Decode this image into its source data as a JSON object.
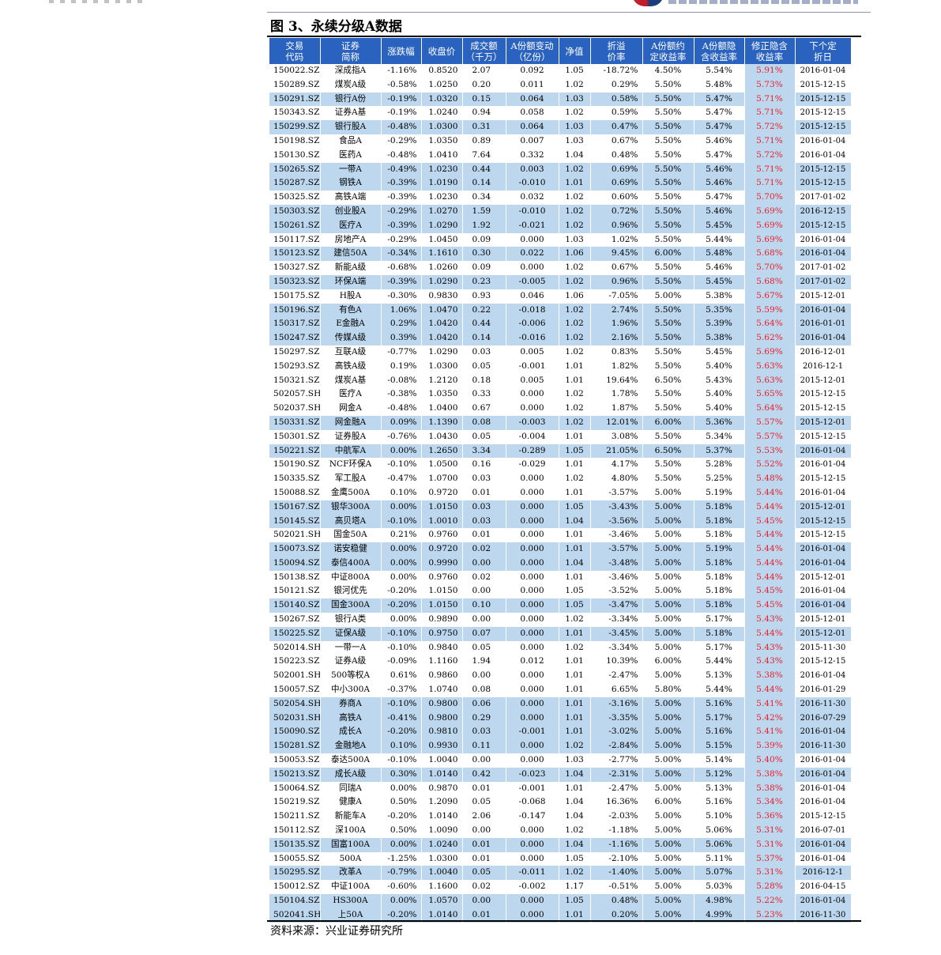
{
  "figure": {
    "title": "图 3、永续分级A数据",
    "source": "资料来源：兴业证券研究所"
  },
  "colors": {
    "header_bg": "#2a62bf",
    "row_highlight": "#bdd7ee",
    "hidden_yield_text": "#e8202a"
  },
  "table": {
    "headers": [
      [
        "交易",
        "代码"
      ],
      [
        "证券",
        "简称"
      ],
      [
        "涨跌幅",
        ""
      ],
      [
        "收盘价",
        ""
      ],
      [
        "成交额",
        "（千万）"
      ],
      [
        "A份额变动",
        "（亿份）"
      ],
      [
        "净值",
        ""
      ],
      [
        "折溢",
        "价率"
      ],
      [
        "A份额约",
        "定收益率"
      ],
      [
        "A份额隐",
        "含收益率"
      ],
      [
        "修正隐含",
        "收益率"
      ],
      [
        "下个定",
        "折日"
      ]
    ],
    "rows": [
      [
        "150022.SZ",
        "深成指A",
        "-1.16%",
        "0.8520",
        "2.07",
        "0.092",
        "1.05",
        "-18.72%",
        "4.50%",
        "5.54%",
        "5.91%",
        "2016-01-04"
      ],
      [
        "150289.SZ",
        "煤炭A级",
        "-0.58%",
        "1.0250",
        "0.20",
        "0.011",
        "1.02",
        "0.29%",
        "5.50%",
        "5.48%",
        "5.73%",
        "2015-12-15"
      ],
      [
        "150291.SZ",
        "银行A份",
        "-0.19%",
        "1.0320",
        "0.15",
        "0.064",
        "1.03",
        "0.58%",
        "5.50%",
        "5.47%",
        "5.71%",
        "2015-12-15"
      ],
      [
        "150343.SZ",
        "证券A基",
        "-0.19%",
        "1.0240",
        "0.94",
        "0.058",
        "1.02",
        "0.59%",
        "5.50%",
        "5.47%",
        "5.71%",
        "2015-12-15"
      ],
      [
        "150299.SZ",
        "银行股A",
        "-0.48%",
        "1.0300",
        "0.31",
        "0.064",
        "1.03",
        "0.47%",
        "5.50%",
        "5.47%",
        "5.72%",
        "2015-12-15"
      ],
      [
        "150198.SZ",
        "食品A",
        "-0.29%",
        "1.0350",
        "0.89",
        "0.007",
        "1.03",
        "0.67%",
        "5.50%",
        "5.46%",
        "5.71%",
        "2016-01-04"
      ],
      [
        "150130.SZ",
        "医药A",
        "-0.48%",
        "1.0410",
        "7.64",
        "0.332",
        "1.04",
        "0.48%",
        "5.50%",
        "5.47%",
        "5.72%",
        "2016-01-04"
      ],
      [
        "150265.SZ",
        "一带A",
        "-0.49%",
        "1.0230",
        "0.44",
        "0.003",
        "1.02",
        "0.69%",
        "5.50%",
        "5.46%",
        "5.71%",
        "2015-12-15"
      ],
      [
        "150287.SZ",
        "钢铁A",
        "-0.39%",
        "1.0190",
        "0.14",
        "-0.010",
        "1.01",
        "0.69%",
        "5.50%",
        "5.46%",
        "5.71%",
        "2015-12-15"
      ],
      [
        "150325.SZ",
        "高铁A端",
        "-0.39%",
        "1.0230",
        "0.34",
        "0.032",
        "1.02",
        "0.60%",
        "5.50%",
        "5.47%",
        "5.70%",
        "2017-01-02"
      ],
      [
        "150303.SZ",
        "创业股A",
        "-0.29%",
        "1.0270",
        "1.59",
        "-0.010",
        "1.02",
        "0.72%",
        "5.50%",
        "5.46%",
        "5.69%",
        "2016-12-15"
      ],
      [
        "150261.SZ",
        "医疗A",
        "-0.39%",
        "1.0290",
        "1.92",
        "-0.021",
        "1.02",
        "0.96%",
        "5.50%",
        "5.45%",
        "5.69%",
        "2015-12-15"
      ],
      [
        "150117.SZ",
        "房地产A",
        "-0.29%",
        "1.0450",
        "0.09",
        "0.000",
        "1.03",
        "1.02%",
        "5.50%",
        "5.44%",
        "5.69%",
        "2016-01-04"
      ],
      [
        "150123.SZ",
        "建信50A",
        "-0.34%",
        "1.1610",
        "0.30",
        "0.022",
        "1.06",
        "9.45%",
        "6.00%",
        "5.48%",
        "5.68%",
        "2016-01-04"
      ],
      [
        "150327.SZ",
        "新能A级",
        "-0.68%",
        "1.0260",
        "0.09",
        "0.000",
        "1.02",
        "0.67%",
        "5.50%",
        "5.46%",
        "5.70%",
        "2017-01-02"
      ],
      [
        "150323.SZ",
        "环保A端",
        "-0.39%",
        "1.0290",
        "0.23",
        "-0.005",
        "1.02",
        "0.96%",
        "5.50%",
        "5.45%",
        "5.68%",
        "2017-01-02"
      ],
      [
        "150175.SZ",
        "H股A",
        "-0.30%",
        "0.9830",
        "0.93",
        "0.046",
        "1.06",
        "-7.05%",
        "5.00%",
        "5.38%",
        "5.67%",
        "2015-12-01"
      ],
      [
        "150196.SZ",
        "有色A",
        "1.06%",
        "1.0470",
        "0.22",
        "-0.018",
        "1.02",
        "2.74%",
        "5.50%",
        "5.35%",
        "5.59%",
        "2016-01-04"
      ],
      [
        "150317.SZ",
        "E金融A",
        "0.29%",
        "1.0420",
        "0.44",
        "-0.006",
        "1.02",
        "1.96%",
        "5.50%",
        "5.39%",
        "5.64%",
        "2016-01-01"
      ],
      [
        "150247.SZ",
        "传媒A级",
        "0.39%",
        "1.0420",
        "0.14",
        "-0.016",
        "1.02",
        "2.16%",
        "5.50%",
        "5.38%",
        "5.62%",
        "2016-01-04"
      ],
      [
        "150297.SZ",
        "互联A级",
        "-0.77%",
        "1.0290",
        "0.03",
        "0.005",
        "1.02",
        "0.83%",
        "5.50%",
        "5.45%",
        "5.69%",
        "2016-12-01"
      ],
      [
        "150293.SZ",
        "高铁A级",
        "0.19%",
        "1.0300",
        "0.05",
        "-0.001",
        "1.01",
        "1.82%",
        "5.50%",
        "5.40%",
        "5.63%",
        "2016-12-1"
      ],
      [
        "150321.SZ",
        "煤炭A基",
        "-0.08%",
        "1.2120",
        "0.18",
        "0.005",
        "1.01",
        "19.64%",
        "6.50%",
        "5.43%",
        "5.63%",
        "2015-12-01"
      ],
      [
        "502057.SH",
        "医疗A",
        "-0.38%",
        "1.0350",
        "0.33",
        "0.000",
        "1.02",
        "1.78%",
        "5.50%",
        "5.40%",
        "5.65%",
        "2015-12-15"
      ],
      [
        "502037.SH",
        "网金A",
        "-0.48%",
        "1.0400",
        "0.67",
        "0.000",
        "1.02",
        "1.87%",
        "5.50%",
        "5.40%",
        "5.64%",
        "2015-12-15"
      ],
      [
        "150331.SZ",
        "网金融A",
        "0.09%",
        "1.1390",
        "0.08",
        "-0.003",
        "1.02",
        "12.01%",
        "6.00%",
        "5.36%",
        "5.57%",
        "2015-12-01"
      ],
      [
        "150301.SZ",
        "证券股A",
        "-0.76%",
        "1.0430",
        "0.05",
        "-0.004",
        "1.01",
        "3.08%",
        "5.50%",
        "5.34%",
        "5.57%",
        "2015-12-15"
      ],
      [
        "150221.SZ",
        "中航军A",
        "0.00%",
        "1.2650",
        "3.34",
        "-0.289",
        "1.05",
        "21.05%",
        "6.50%",
        "5.37%",
        "5.53%",
        "2016-01-04"
      ],
      [
        "150190.SZ",
        "NCF环保A",
        "-0.10%",
        "1.0500",
        "0.16",
        "-0.029",
        "1.01",
        "4.17%",
        "5.50%",
        "5.28%",
        "5.52%",
        "2016-01-04"
      ],
      [
        "150335.SZ",
        "军工股A",
        "-0.47%",
        "1.0700",
        "0.03",
        "0.000",
        "1.02",
        "4.80%",
        "5.50%",
        "5.25%",
        "5.48%",
        "2015-12-15"
      ],
      [
        "150088.SZ",
        "金鹰500A",
        "0.10%",
        "0.9720",
        "0.01",
        "0.000",
        "1.01",
        "-3.57%",
        "5.00%",
        "5.19%",
        "5.44%",
        "2016-01-04"
      ],
      [
        "150167.SZ",
        "银华300A",
        "0.00%",
        "1.0150",
        "0.03",
        "0.000",
        "1.05",
        "-3.43%",
        "5.00%",
        "5.18%",
        "5.44%",
        "2015-12-01"
      ],
      [
        "150145.SZ",
        "高贝塔A",
        "-0.10%",
        "1.0010",
        "0.03",
        "0.000",
        "1.04",
        "-3.56%",
        "5.00%",
        "5.18%",
        "5.45%",
        "2015-12-15"
      ],
      [
        "502021.SH",
        "国金50A",
        "0.21%",
        "0.9760",
        "0.01",
        "0.000",
        "1.01",
        "-3.46%",
        "5.00%",
        "5.18%",
        "5.44%",
        "2015-12-15"
      ],
      [
        "150073.SZ",
        "诺安稳健",
        "0.00%",
        "0.9720",
        "0.02",
        "0.000",
        "1.01",
        "-3.57%",
        "5.00%",
        "5.19%",
        "5.44%",
        "2016-01-04"
      ],
      [
        "150094.SZ",
        "泰信400A",
        "0.00%",
        "0.9990",
        "0.00",
        "0.000",
        "1.04",
        "-3.48%",
        "5.00%",
        "5.18%",
        "5.44%",
        "2016-01-04"
      ],
      [
        "150138.SZ",
        "中证800A",
        "0.00%",
        "0.9760",
        "0.02",
        "0.000",
        "1.01",
        "-3.46%",
        "5.00%",
        "5.18%",
        "5.44%",
        "2015-12-01"
      ],
      [
        "150121.SZ",
        "银河优先",
        "-0.20%",
        "1.0150",
        "0.00",
        "0.000",
        "1.05",
        "-3.52%",
        "5.00%",
        "5.18%",
        "5.45%",
        "2016-01-04"
      ],
      [
        "150140.SZ",
        "国金300A",
        "-0.20%",
        "1.0150",
        "0.10",
        "0.000",
        "1.05",
        "-3.47%",
        "5.00%",
        "5.18%",
        "5.45%",
        "2016-01-04"
      ],
      [
        "150267.SZ",
        "银行A类",
        "0.00%",
        "0.9890",
        "0.00",
        "0.000",
        "1.02",
        "-3.34%",
        "5.00%",
        "5.17%",
        "5.43%",
        "2015-12-01"
      ],
      [
        "150225.SZ",
        "证保A级",
        "-0.10%",
        "0.9750",
        "0.07",
        "0.000",
        "1.01",
        "-3.45%",
        "5.00%",
        "5.18%",
        "5.44%",
        "2015-12-01"
      ],
      [
        "502014.SH",
        "一带一A",
        "-0.10%",
        "0.9840",
        "0.05",
        "0.000",
        "1.02",
        "-3.34%",
        "5.00%",
        "5.17%",
        "5.43%",
        "2015-11-30"
      ],
      [
        "150223.SZ",
        "证券A级",
        "-0.09%",
        "1.1160",
        "1.94",
        "0.012",
        "1.01",
        "10.39%",
        "6.00%",
        "5.44%",
        "5.43%",
        "2015-12-15"
      ],
      [
        "502001.SH",
        "500等权A",
        "0.61%",
        "0.9860",
        "0.00",
        "0.000",
        "1.01",
        "-2.47%",
        "5.00%",
        "5.13%",
        "5.38%",
        "2016-01-04"
      ],
      [
        "150057.SZ",
        "中小300A",
        "-0.37%",
        "1.0740",
        "0.08",
        "0.000",
        "1.01",
        "6.65%",
        "5.80%",
        "5.44%",
        "5.44%",
        "2016-01-29"
      ],
      [
        "502054.SH",
        "券商A",
        "-0.10%",
        "0.9800",
        "0.06",
        "0.000",
        "1.01",
        "-3.16%",
        "5.00%",
        "5.16%",
        "5.41%",
        "2016-11-30"
      ],
      [
        "502031.SH",
        "高铁A",
        "-0.41%",
        "0.9800",
        "0.29",
        "0.000",
        "1.01",
        "-3.35%",
        "5.00%",
        "5.17%",
        "5.42%",
        "2016-07-29"
      ],
      [
        "150090.SZ",
        "成长A",
        "-0.20%",
        "0.9810",
        "0.03",
        "-0.001",
        "1.01",
        "-3.02%",
        "5.00%",
        "5.16%",
        "5.41%",
        "2016-01-04"
      ],
      [
        "150281.SZ",
        "金融地A",
        "0.10%",
        "0.9930",
        "0.11",
        "0.000",
        "1.02",
        "-2.84%",
        "5.00%",
        "5.15%",
        "5.39%",
        "2016-11-30"
      ],
      [
        "150053.SZ",
        "泰达500A",
        "-0.10%",
        "1.0040",
        "0.00",
        "0.000",
        "1.03",
        "-2.77%",
        "5.00%",
        "5.14%",
        "5.40%",
        "2016-01-04"
      ],
      [
        "150213.SZ",
        "成长A级",
        "0.30%",
        "1.0140",
        "0.42",
        "-0.023",
        "1.04",
        "-2.31%",
        "5.00%",
        "5.12%",
        "5.38%",
        "2016-01-04"
      ],
      [
        "150064.SZ",
        "同瑞A",
        "0.00%",
        "0.9870",
        "0.01",
        "-0.001",
        "1.01",
        "-2.47%",
        "5.00%",
        "5.13%",
        "5.38%",
        "2016-01-04"
      ],
      [
        "150219.SZ",
        "健康A",
        "0.50%",
        "1.2090",
        "0.05",
        "-0.068",
        "1.04",
        "16.36%",
        "6.00%",
        "5.16%",
        "5.34%",
        "2016-01-04"
      ],
      [
        "150211.SZ",
        "新能车A",
        "-0.20%",
        "1.0140",
        "2.06",
        "-0.147",
        "1.04",
        "-2.03%",
        "5.00%",
        "5.10%",
        "5.36%",
        "2015-12-15"
      ],
      [
        "150112.SZ",
        "深100A",
        "0.50%",
        "1.0090",
        "0.00",
        "0.000",
        "1.02",
        "-1.18%",
        "5.00%",
        "5.06%",
        "5.31%",
        "2016-07-01"
      ],
      [
        "150135.SZ",
        "国富100A",
        "0.00%",
        "1.0240",
        "0.01",
        "0.000",
        "1.04",
        "-1.16%",
        "5.00%",
        "5.06%",
        "5.31%",
        "2016-01-04"
      ],
      [
        "150055.SZ",
        "500A",
        "-1.25%",
        "1.0300",
        "0.01",
        "0.000",
        "1.05",
        "-2.10%",
        "5.00%",
        "5.11%",
        "5.37%",
        "2016-01-04"
      ],
      [
        "150295.SZ",
        "改革A",
        "-0.79%",
        "1.0040",
        "0.05",
        "-0.011",
        "1.02",
        "-1.40%",
        "5.00%",
        "5.07%",
        "5.31%",
        "2016-12-1"
      ],
      [
        "150012.SZ",
        "中证100A",
        "-0.60%",
        "1.1600",
        "0.02",
        "-0.002",
        "1.17",
        "-0.51%",
        "5.00%",
        "5.03%",
        "5.28%",
        "2016-04-15"
      ],
      [
        "150104.SZ",
        "HS300A",
        "0.00%",
        "1.0570",
        "0.00",
        "0.000",
        "1.05",
        "0.48%",
        "5.00%",
        "4.98%",
        "5.22%",
        "2016-01-04"
      ],
      [
        "502041.SH",
        "上50A",
        "-0.20%",
        "1.0140",
        "0.01",
        "0.000",
        "1.01",
        "0.20%",
        "5.00%",
        "4.99%",
        "5.23%",
        "2016-11-30"
      ]
    ],
    "highlighted_rows": [
      2,
      4,
      7,
      8,
      10,
      11,
      13,
      15,
      17,
      18,
      19,
      25,
      27,
      31,
      32,
      34,
      35,
      38,
      40,
      45,
      46,
      47,
      48,
      50,
      55,
      57,
      59,
      60
    ]
  }
}
